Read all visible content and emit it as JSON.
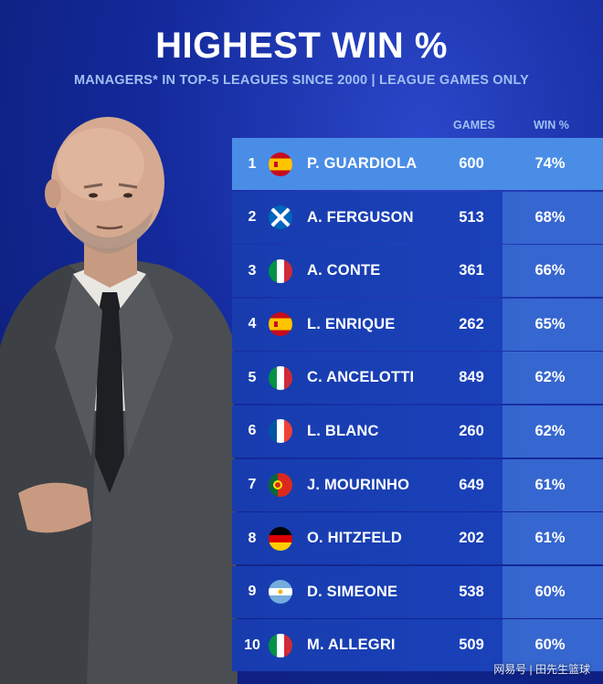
{
  "header": {
    "title": "HIGHEST WIN %",
    "subtitle": "MANAGERS* IN TOP-5 LEAGUES SINCE 2000 | LEAGUE GAMES ONLY"
  },
  "table": {
    "col_games": "GAMES",
    "col_win": "WIN %",
    "rows": [
      {
        "rank": "1",
        "flag": "spain",
        "name": "P. GUARDIOLA",
        "games": "600",
        "win": "74%"
      },
      {
        "rank": "2",
        "flag": "scotland",
        "name": "A. FERGUSON",
        "games": "513",
        "win": "68%"
      },
      {
        "rank": "3",
        "flag": "italy",
        "name": "A. CONTE",
        "games": "361",
        "win": "66%"
      },
      {
        "rank": "4",
        "flag": "spain",
        "name": "L. ENRIQUE",
        "games": "262",
        "win": "65%"
      },
      {
        "rank": "5",
        "flag": "italy",
        "name": "C. ANCELOTTI",
        "games": "849",
        "win": "62%"
      },
      {
        "rank": "6",
        "flag": "france",
        "name": "L. BLANC",
        "games": "260",
        "win": "62%"
      },
      {
        "rank": "7",
        "flag": "portugal",
        "name": "J. MOURINHO",
        "games": "649",
        "win": "61%"
      },
      {
        "rank": "8",
        "flag": "germany",
        "name": "O. HITZFELD",
        "games": "202",
        "win": "61%"
      },
      {
        "rank": "9",
        "flag": "argentina",
        "name": "D. SIMEONE",
        "games": "538",
        "win": "60%"
      },
      {
        "rank": "10",
        "flag": "italy",
        "name": "M. ALLEGRI",
        "games": "509",
        "win": "60%"
      }
    ]
  },
  "watermark": "网易号 | 田先生篮球",
  "colors": {
    "background": "#142a9c",
    "row": "#1a43bd",
    "highlight_row": "#4a8de6",
    "subtitle": "#9fc0f2"
  }
}
